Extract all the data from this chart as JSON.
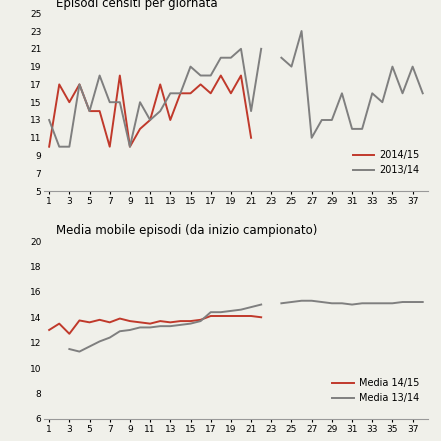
{
  "chart1_title": "Episodi censiti per giornata",
  "chart2_title": "Media mobile episodi (da inizio campionato)",
  "series1_2014": [
    10,
    17,
    15,
    17,
    14,
    14,
    10,
    18,
    10,
    12,
    13,
    17,
    13,
    16,
    16,
    17,
    16,
    18,
    16,
    18,
    11,
    null,
    null,
    null,
    null,
    null,
    null,
    null,
    null,
    null,
    null,
    null,
    null,
    null,
    null,
    null,
    null,
    null
  ],
  "series1_2013": [
    13,
    10,
    10,
    17,
    14,
    18,
    15,
    15,
    10,
    15,
    13,
    14,
    16,
    16,
    19,
    18,
    18,
    20,
    20,
    21,
    14,
    21,
    null,
    20,
    19,
    23,
    11,
    13,
    13,
    16,
    12,
    12,
    16,
    15,
    19,
    16,
    19,
    16
  ],
  "series2_2014": [
    13.0,
    13.5,
    12.7,
    13.75,
    13.6,
    13.8,
    13.6,
    13.9,
    13.7,
    13.6,
    13.5,
    13.7,
    13.6,
    13.7,
    13.7,
    13.8,
    14.1,
    14.1,
    14.1,
    14.1,
    14.1,
    14.0,
    null,
    null,
    null,
    null,
    null,
    null,
    null,
    null,
    null,
    null,
    null,
    null,
    null,
    null,
    null,
    null
  ],
  "series2_2013": [
    null,
    null,
    11.5,
    11.3,
    11.7,
    12.1,
    12.4,
    12.9,
    13.0,
    13.2,
    13.2,
    13.3,
    13.3,
    13.4,
    13.5,
    13.7,
    14.4,
    14.4,
    14.5,
    14.6,
    14.8,
    15.0,
    null,
    15.1,
    15.2,
    15.3,
    15.3,
    15.2,
    15.1,
    15.1,
    15.0,
    15.1,
    15.1,
    15.1,
    15.1,
    15.2,
    15.2,
    15.2
  ],
  "x": [
    1,
    2,
    3,
    4,
    5,
    6,
    7,
    8,
    9,
    10,
    11,
    12,
    13,
    14,
    15,
    16,
    17,
    18,
    19,
    20,
    21,
    22,
    23,
    24,
    25,
    26,
    27,
    28,
    29,
    30,
    31,
    32,
    33,
    34,
    35,
    36,
    37,
    38
  ],
  "xticks": [
    1,
    3,
    5,
    7,
    9,
    11,
    13,
    15,
    17,
    19,
    21,
    23,
    25,
    27,
    29,
    31,
    33,
    35,
    37
  ],
  "chart1_ylim": [
    5,
    25
  ],
  "chart1_yticks": [
    5,
    7,
    9,
    11,
    13,
    15,
    17,
    19,
    21,
    23,
    25
  ],
  "chart2_ylim": [
    6,
    20
  ],
  "chart2_yticks": [
    6,
    8,
    10,
    12,
    14,
    16,
    18,
    20
  ],
  "color_2014": "#c0392b",
  "color_2013": "#7f7f7f",
  "bg_color": "#f0f0ea",
  "legend1_labels": [
    "2014/15",
    "2013/14"
  ],
  "legend2_labels": [
    "Media 14/15",
    "Media 13/14"
  ],
  "title_fontsize": 8.5,
  "tick_fontsize": 6.5,
  "legend_fontsize": 7,
  "linewidth": 1.4
}
